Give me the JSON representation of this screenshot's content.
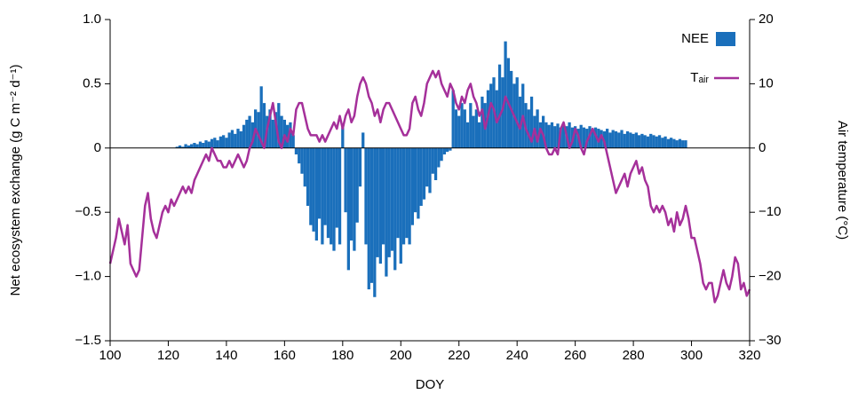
{
  "chart_data": {
    "type": "bar_line",
    "xlabel": "DOY",
    "ylabel": "Net ecosystem exchange (g C m⁻² d⁻¹)",
    "y2label": "Air temperature (°C)",
    "xlim": [
      100,
      320
    ],
    "xticks": [
      100,
      120,
      140,
      160,
      180,
      200,
      220,
      240,
      260,
      280,
      300,
      320
    ],
    "ylim": [
      -1.5,
      1.0
    ],
    "yticks": [
      {
        "value": -1.5,
        "label": "−1.5"
      },
      {
        "value": -1.0,
        "label": "−1.0"
      },
      {
        "value": -0.5,
        "label": "−0.5"
      },
      0,
      {
        "value": 0.5,
        "label": "0.5"
      },
      {
        "value": 1.0,
        "label": "1.0"
      }
    ],
    "y2lim": [
      -30,
      20
    ],
    "y2ticks": [
      {
        "value": -30,
        "label": "−30"
      },
      {
        "value": -20,
        "label": "−20"
      },
      {
        "value": -10,
        "label": "−10"
      },
      0,
      10,
      20
    ],
    "legend": "upper right",
    "x": [
      100,
      101,
      102,
      103,
      104,
      105,
      106,
      107,
      108,
      109,
      110,
      111,
      112,
      113,
      114,
      115,
      116,
      117,
      118,
      119,
      120,
      121,
      122,
      123,
      124,
      125,
      126,
      127,
      128,
      129,
      130,
      131,
      132,
      133,
      134,
      135,
      136,
      137,
      138,
      139,
      140,
      141,
      142,
      143,
      144,
      145,
      146,
      147,
      148,
      149,
      150,
      151,
      152,
      153,
      154,
      155,
      156,
      157,
      158,
      159,
      160,
      161,
      162,
      163,
      164,
      165,
      166,
      167,
      168,
      169,
      170,
      171,
      172,
      173,
      174,
      175,
      176,
      177,
      178,
      179,
      180,
      181,
      182,
      183,
      184,
      185,
      186,
      187,
      188,
      189,
      190,
      191,
      192,
      193,
      194,
      195,
      196,
      197,
      198,
      199,
      200,
      201,
      202,
      203,
      204,
      205,
      206,
      207,
      208,
      209,
      210,
      211,
      212,
      213,
      214,
      215,
      216,
      217,
      218,
      219,
      220,
      221,
      222,
      223,
      224,
      225,
      226,
      227,
      228,
      229,
      230,
      231,
      232,
      233,
      234,
      235,
      236,
      237,
      238,
      239,
      240,
      241,
      242,
      243,
      244,
      245,
      246,
      247,
      248,
      249,
      250,
      251,
      252,
      253,
      254,
      255,
      256,
      257,
      258,
      259,
      260,
      261,
      262,
      263,
      264,
      265,
      266,
      267,
      268,
      269,
      270,
      271,
      272,
      273,
      274,
      275,
      276,
      277,
      278,
      279,
      280,
      281,
      282,
      283,
      284,
      285,
      286,
      287,
      288,
      289,
      290,
      291,
      292,
      293,
      294,
      295,
      296,
      297,
      298,
      299,
      300,
      301,
      302,
      303,
      304,
      305,
      306,
      307,
      308,
      309,
      310,
      311,
      312,
      313,
      314,
      315,
      316,
      317,
      318,
      319,
      320
    ],
    "series": [
      {
        "name": "NEE",
        "kind": "bar",
        "color": "#1a6fbb",
        "values": [
          null,
          null,
          null,
          null,
          null,
          null,
          null,
          null,
          null,
          null,
          null,
          null,
          null,
          null,
          null,
          null,
          null,
          null,
          null,
          null,
          null,
          null,
          null,
          0.01,
          0.02,
          0.01,
          0.03,
          0.02,
          0.03,
          0.04,
          0.03,
          0.05,
          0.04,
          0.06,
          0.05,
          0.07,
          0.08,
          0.06,
          0.09,
          0.1,
          0.08,
          0.12,
          0.14,
          0.11,
          0.15,
          0.13,
          0.18,
          0.22,
          0.25,
          0.2,
          0.3,
          0.28,
          0.48,
          0.35,
          0.25,
          0.3,
          0.22,
          0.28,
          0.35,
          0.25,
          0.22,
          0.18,
          0.2,
          0.1,
          -0.05,
          -0.12,
          -0.2,
          -0.3,
          -0.45,
          -0.6,
          -0.65,
          -0.72,
          -0.55,
          -0.75,
          -0.6,
          -0.7,
          -0.75,
          -0.8,
          -0.62,
          -0.75,
          0.16,
          -0.5,
          -0.95,
          -0.72,
          -0.8,
          -0.58,
          -0.3,
          0.12,
          -0.75,
          -1.1,
          -1.05,
          -1.16,
          -0.85,
          -0.9,
          -0.75,
          -1.0,
          -0.85,
          -0.8,
          -0.95,
          -0.7,
          -0.9,
          -0.75,
          -0.7,
          -0.75,
          -0.6,
          -0.5,
          -0.55,
          -0.45,
          -0.4,
          -0.3,
          -0.35,
          -0.2,
          -0.25,
          -0.15,
          -0.1,
          -0.05,
          -0.03,
          -0.02,
          0.45,
          0.3,
          0.25,
          0.35,
          0.3,
          0.2,
          0.35,
          0.25,
          0.3,
          0.2,
          0.4,
          0.35,
          0.45,
          0.5,
          0.55,
          0.45,
          0.65,
          0.55,
          0.83,
          0.7,
          0.6,
          0.5,
          0.55,
          0.4,
          0.5,
          0.35,
          0.3,
          0.4,
          0.25,
          0.3,
          0.2,
          0.25,
          0.2,
          0.18,
          0.2,
          0.17,
          0.19,
          0.16,
          0.18,
          0.17,
          0.2,
          0.16,
          0.17,
          0.15,
          0.18,
          0.16,
          0.15,
          0.17,
          0.14,
          0.16,
          0.15,
          0.14,
          0.13,
          0.15,
          0.12,
          0.14,
          0.13,
          0.12,
          0.14,
          0.11,
          0.13,
          0.12,
          0.11,
          0.12,
          0.1,
          0.11,
          0.1,
          0.09,
          0.11,
          0.1,
          0.09,
          0.1,
          0.08,
          0.09,
          0.07,
          0.08,
          0.07,
          0.06,
          0.07,
          0.06,
          0.06,
          null,
          null,
          null,
          null,
          null,
          null,
          null,
          null,
          null,
          null,
          null,
          null,
          null,
          null,
          null,
          null,
          null,
          null,
          null,
          null,
          null,
          null
        ]
      },
      {
        "name": "Tₐᵢᵣ",
        "kind": "line",
        "axis": "y2",
        "color": "#a5309a",
        "values": [
          -18,
          -16,
          -14,
          -11,
          -13,
          -15,
          -12,
          -18,
          -19,
          -20,
          -19,
          -14,
          -9,
          -7,
          -11,
          -13,
          -14,
          -12,
          -10,
          -9,
          -10,
          -8,
          -9,
          -8,
          -7,
          -6,
          -7,
          -6,
          -7,
          -5,
          -4,
          -3,
          -2,
          -1,
          -2,
          0,
          -1,
          -2,
          -2,
          -3,
          -3,
          -2,
          -3,
          -2,
          -1,
          -2,
          -3,
          -2,
          0,
          1,
          3,
          2,
          1,
          0,
          3,
          5,
          7,
          4,
          1,
          0,
          2,
          1,
          3,
          2,
          6,
          7,
          7,
          5,
          3,
          2,
          2,
          2,
          1,
          2,
          1,
          2,
          3,
          4,
          3,
          5,
          3,
          5,
          6,
          4,
          5,
          8,
          10,
          11,
          10,
          8,
          7,
          5,
          6,
          4,
          6,
          7,
          7,
          6,
          5,
          4,
          3,
          2,
          2,
          3,
          7,
          8,
          6,
          5,
          7,
          10,
          11,
          12,
          11,
          12,
          10,
          9,
          8,
          10,
          9,
          7,
          6,
          8,
          7,
          9,
          10,
          8,
          7,
          5,
          6,
          3,
          5,
          7,
          6,
          4,
          5,
          6,
          8,
          7,
          6,
          5,
          4,
          3,
          5,
          3,
          2,
          1,
          3,
          1,
          3,
          2,
          0,
          -1,
          -1,
          0,
          -1,
          3,
          4,
          2,
          0,
          1,
          3,
          2,
          0,
          -1,
          1,
          2,
          3,
          2,
          1,
          2,
          1,
          -1,
          -3,
          -5,
          -7,
          -6,
          -5,
          -4,
          -6,
          -4,
          -3,
          -2,
          -4,
          -3,
          -5,
          -6,
          -9,
          -10,
          -9,
          -10,
          -9,
          -10,
          -12,
          -11,
          -13,
          -10,
          -12,
          -11,
          -9,
          -11,
          -14,
          -14,
          -16,
          -18,
          -21,
          -22,
          -21,
          -21,
          -24,
          -23,
          -21,
          -19,
          -21,
          -22,
          -20,
          -17,
          -18,
          -22,
          -21,
          -23,
          -22
        ]
      }
    ]
  }
}
